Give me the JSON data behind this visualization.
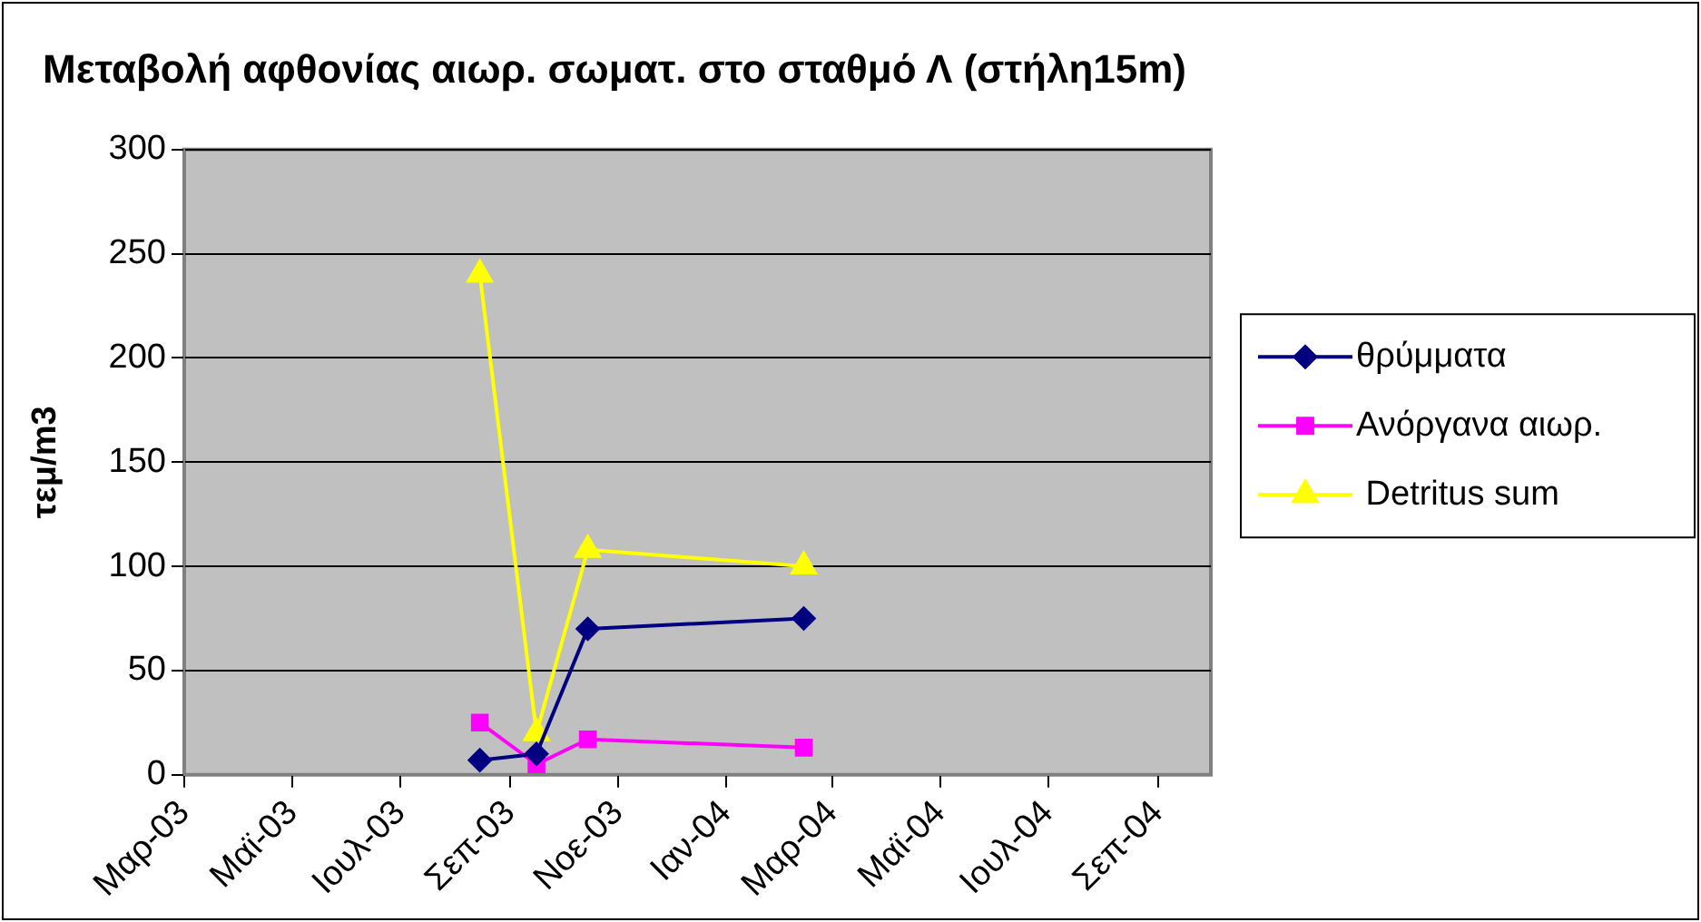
{
  "chart_data": {
    "type": "line",
    "title": "Μεταβολή αφθονίας αιωρ. σωματ. στο σταθμό Λ (στήλη15m)",
    "ylabel": "τεμ/m3",
    "x": [
      "2003-08-15",
      "2003-09-16",
      "2003-10-15",
      "2004-02-14"
    ],
    "series": [
      {
        "name": "θρύμματα",
        "color": "#000080",
        "marker": "diamond",
        "values": [
          7,
          10,
          70,
          75
        ]
      },
      {
        "name": "Ανόργανα αιωρ.",
        "color": "#ff00ff",
        "marker": "square",
        "values": [
          25,
          5,
          17,
          13
        ]
      },
      {
        "name": " Detritus sum",
        "color": "#ffff00",
        "marker": "triangle",
        "values": [
          240,
          20,
          108,
          100
        ]
      }
    ],
    "xlim": [
      "2003-03",
      "2004-10"
    ],
    "xticks": [
      {
        "value": "2003-03",
        "label": "Μαρ-03"
      },
      {
        "value": "2003-05",
        "label": "Μαϊ-03"
      },
      {
        "value": "2003-07",
        "label": "Ιουλ-03"
      },
      {
        "value": "2003-09",
        "label": "Σεπ-03"
      },
      {
        "value": "2003-11",
        "label": "Νοε-03"
      },
      {
        "value": "2004-01",
        "label": "Ιαν-04"
      },
      {
        "value": "2004-03",
        "label": "Μαρ-04"
      },
      {
        "value": "2004-05",
        "label": "Μαϊ-04"
      },
      {
        "value": "2004-07",
        "label": "Ιουλ-04"
      },
      {
        "value": "2004-09",
        "label": "Σεπ-04"
      }
    ],
    "ylim": [
      0,
      300
    ],
    "yticks": [
      0,
      50,
      100,
      150,
      200,
      250,
      300
    ],
    "grid": "y",
    "legend": "right",
    "line_style": "solid"
  }
}
